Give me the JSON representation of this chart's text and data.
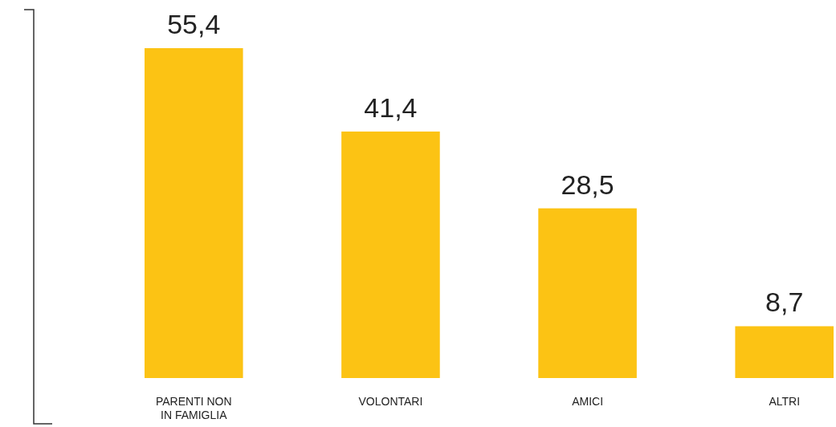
{
  "chart_data": {
    "type": "bar",
    "categories": [
      "PARENTI NON IN FAMIGLIA",
      "VOLONTARI",
      "AMICI",
      "ALTRI"
    ],
    "values": [
      55.4,
      41.4,
      28.5,
      8.7
    ],
    "value_labels": [
      "55,4",
      "41,4",
      "28,5",
      "8,7"
    ],
    "color": "#fcc314"
  }
}
